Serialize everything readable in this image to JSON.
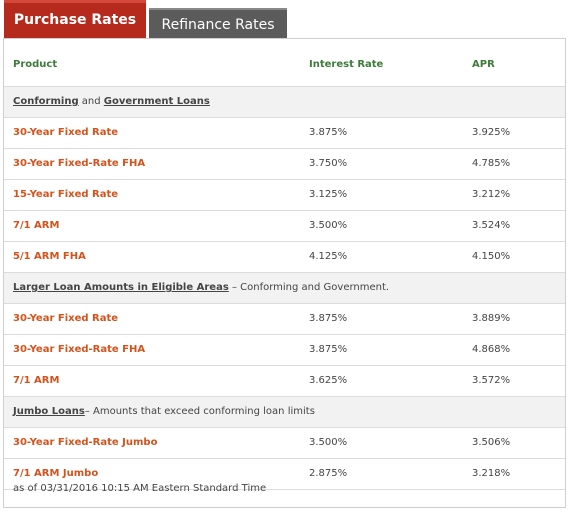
{
  "tabs": {
    "active": "Purchase Rates",
    "inactive": "Refinance Rates"
  },
  "header": {
    "product": "Product",
    "rate": "Interest Rate",
    "apr": "APR"
  },
  "sections": [
    {
      "title_parts": [
        {
          "text": "Conforming",
          "underline": true
        },
        {
          "text": " and ",
          "underline": false
        },
        {
          "text": "Government Loans",
          "underline": true
        }
      ],
      "rows": [
        {
          "product": "30-Year Fixed Rate",
          "rate": "3.875%",
          "apr": "3.925%"
        },
        {
          "product": "30-Year Fixed-Rate FHA",
          "rate": "3.750%",
          "apr": "4.785%"
        },
        {
          "product": "15-Year Fixed Rate",
          "rate": "3.125%",
          "apr": "3.212%"
        },
        {
          "product": "7/1 ARM",
          "rate": "3.500%",
          "apr": "3.524%"
        },
        {
          "product": "5/1 ARM FHA",
          "rate": "4.125%",
          "apr": "4.150%"
        }
      ]
    },
    {
      "title_parts": [
        {
          "text": "Larger Loan Amounts in Eligible Areas",
          "underline": true
        },
        {
          "text": " – Conforming and Government.",
          "underline": false
        }
      ],
      "rows": [
        {
          "product": "30-Year Fixed Rate",
          "rate": "3.875%",
          "apr": "3.889%"
        },
        {
          "product": "30-Year Fixed-Rate FHA",
          "rate": "3.875%",
          "apr": "4.868%"
        },
        {
          "product": "7/1 ARM",
          "rate": "3.625%",
          "apr": "3.572%"
        }
      ]
    },
    {
      "title_parts": [
        {
          "text": "Jumbo Loans",
          "underline": true
        },
        {
          "text": "– Amounts that exceed conforming loan limits",
          "underline": false
        }
      ],
      "rows": [
        {
          "product": "30-Year Fixed-Rate Jumbo",
          "rate": "3.500%",
          "apr": "3.506%"
        },
        {
          "product": "7/1 ARM Jumbo",
          "rate": "2.875%",
          "apr": "3.218%"
        }
      ]
    }
  ],
  "footer": "as of 03/31/2016 10:15 AM Eastern Standard Time"
}
